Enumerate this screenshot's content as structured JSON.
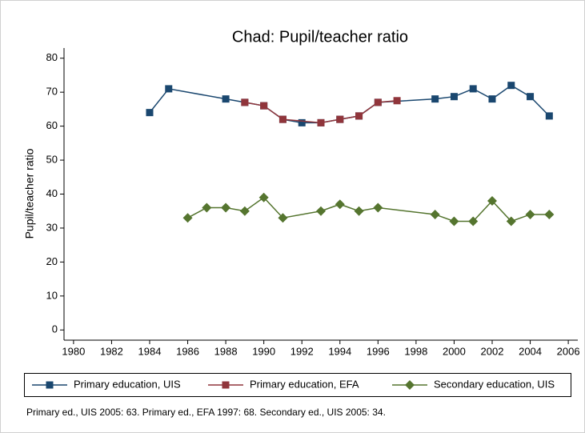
{
  "chart_data": {
    "type": "line",
    "title": "Chad: Pupil/teacher ratio",
    "ylabel": "Pupil/teacher ratio",
    "note": "Primary ed., UIS 2005: 63. Primary ed., EFA 1997: 68. Secondary ed., UIS 2005: 34.",
    "series": [
      {
        "name": "Primary education, UIS",
        "color": "#1a476f",
        "marker": "square",
        "x": [
          1984,
          1985,
          1988,
          1989,
          1990,
          1991,
          1992,
          1993,
          1994,
          1995,
          1996,
          1999,
          2000,
          2001,
          2002,
          2003,
          2004,
          2005
        ],
        "values": [
          64,
          71,
          68,
          67,
          66,
          62,
          61,
          61,
          62,
          63,
          67,
          68,
          68.7,
          71,
          68,
          72,
          68.7,
          63
        ]
      },
      {
        "name": "Primary education, EFA",
        "color": "#90353b",
        "marker": "square",
        "x": [
          1989,
          1990,
          1991,
          1993,
          1994,
          1995,
          1996,
          1997
        ],
        "values": [
          67,
          66,
          62,
          61,
          62,
          63,
          67,
          67.5
        ]
      },
      {
        "name": "Secondary education, UIS",
        "color": "#55752f",
        "marker": "diamond",
        "x": [
          1986,
          1987,
          1988,
          1989,
          1990,
          1991,
          1993,
          1994,
          1995,
          1996,
          1999,
          2000,
          2001,
          2002,
          2003,
          2004,
          2005
        ],
        "values": [
          33,
          36,
          36,
          35,
          39,
          33,
          35,
          37,
          35,
          36,
          34,
          32,
          32,
          38,
          32,
          34,
          34
        ]
      }
    ],
    "xlim": [
      1979.5,
      2006.5
    ],
    "xticks": [
      1980,
      1982,
      1984,
      1986,
      1988,
      1990,
      1992,
      1994,
      1996,
      1998,
      2000,
      2002,
      2004,
      2006
    ],
    "ylim": [
      -3,
      83
    ],
    "yticks": [
      0,
      10,
      20,
      30,
      40,
      50,
      60,
      70,
      80
    ],
    "grid": false,
    "legend": "bottom"
  }
}
